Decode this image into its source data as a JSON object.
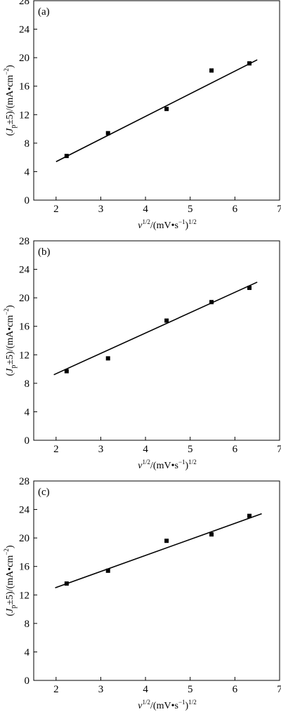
{
  "chart_data": [
    {
      "type": "scatter",
      "panel_label": "(a)",
      "xlim": [
        1.5,
        7
      ],
      "ylim": [
        0,
        28
      ],
      "x_ticks": [
        2,
        3,
        4,
        5,
        6,
        7
      ],
      "y_ticks": [
        0,
        4,
        8,
        12,
        16,
        20,
        24,
        28
      ],
      "points": [
        {
          "x": 2.236,
          "y": 6.2
        },
        {
          "x": 3.162,
          "y": 9.4
        },
        {
          "x": 4.472,
          "y": 12.8
        },
        {
          "x": 5.477,
          "y": 18.2
        },
        {
          "x": 6.325,
          "y": 19.2
        }
      ],
      "fit": {
        "x": [
          2.0,
          6.5
        ],
        "y": [
          5.4,
          19.7
        ]
      },
      "grid": false
    },
    {
      "type": "scatter",
      "panel_label": "(b)",
      "xlim": [
        1.5,
        7
      ],
      "ylim": [
        0,
        28
      ],
      "x_ticks": [
        2,
        3,
        4,
        5,
        6,
        7
      ],
      "y_ticks": [
        0,
        4,
        8,
        12,
        16,
        20,
        24,
        28
      ],
      "points": [
        {
          "x": 2.236,
          "y": 9.7
        },
        {
          "x": 3.162,
          "y": 11.5
        },
        {
          "x": 4.472,
          "y": 16.8
        },
        {
          "x": 5.477,
          "y": 19.4
        },
        {
          "x": 6.325,
          "y": 21.4
        }
      ],
      "fit": {
        "x": [
          1.95,
          6.5
        ],
        "y": [
          9.2,
          22.2
        ]
      },
      "grid": false
    },
    {
      "type": "scatter",
      "panel_label": "(c)",
      "xlim": [
        1.5,
        7
      ],
      "ylim": [
        0,
        28
      ],
      "x_ticks": [
        2,
        3,
        4,
        5,
        6,
        7
      ],
      "y_ticks": [
        0,
        4,
        8,
        12,
        16,
        20,
        24,
        28
      ],
      "points": [
        {
          "x": 2.236,
          "y": 13.6
        },
        {
          "x": 3.162,
          "y": 15.4
        },
        {
          "x": 4.472,
          "y": 19.6
        },
        {
          "x": 5.477,
          "y": 20.5
        },
        {
          "x": 6.325,
          "y": 23.1
        }
      ],
      "fit": {
        "x": [
          1.98,
          6.6
        ],
        "y": [
          13.0,
          23.4
        ]
      },
      "grid": false
    }
  ],
  "axis_titles": {
    "y": {
      "open": "(",
      "J": "J",
      "sub": "p",
      "rest": "±5)/(mA•cm",
      "sup": "−2",
      "close": ")"
    },
    "x": {
      "v": "v",
      "sup1": "1/2",
      "mid": "/(mV•s",
      "sup2": "−1",
      "close": ")",
      "sup3": "1/2"
    }
  }
}
